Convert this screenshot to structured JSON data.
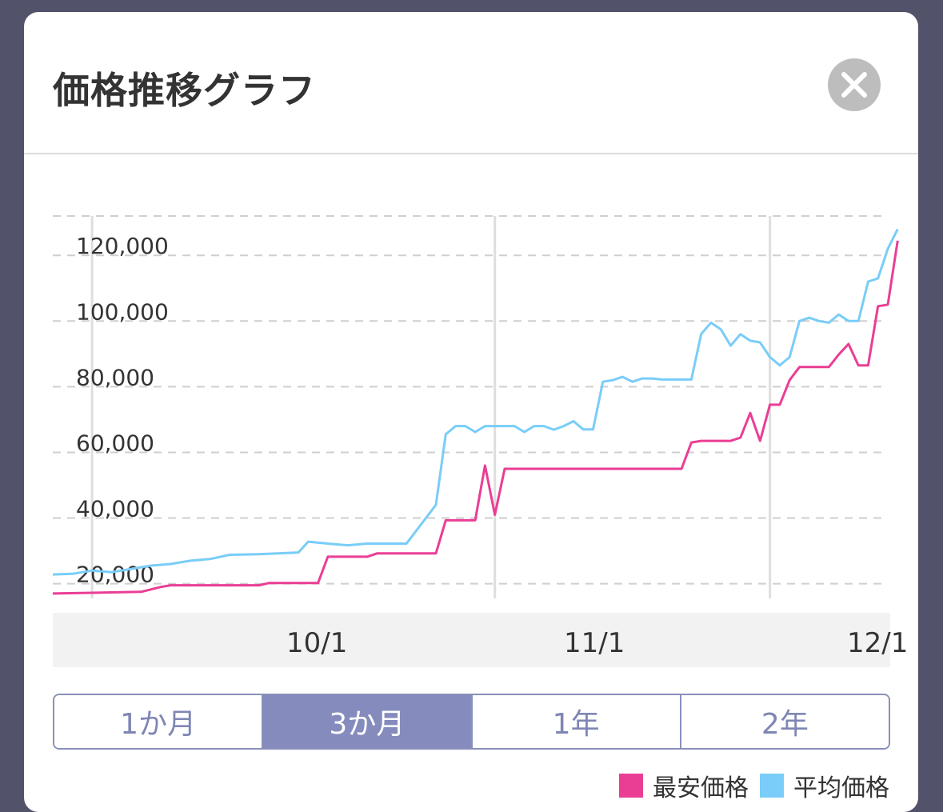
{
  "modal": {
    "title": "価格推移グラフ",
    "close_icon": "close-icon"
  },
  "tabs": [
    {
      "label": "1か月",
      "active": false
    },
    {
      "label": "3か月",
      "active": true
    },
    {
      "label": "1年",
      "active": false
    },
    {
      "label": "2年",
      "active": false
    }
  ],
  "chart_data": {
    "type": "line",
    "xlim": [
      "2023-09-09",
      "2023-12-03"
    ],
    "ylim": [
      16000,
      132000
    ],
    "yticks": [
      20000,
      40000,
      60000,
      80000,
      100000,
      120000
    ],
    "ytick_labels": [
      "20,000",
      "40,000",
      "60,000",
      "80,000",
      "100,000",
      "120,000"
    ],
    "xticks": [
      "2023-10-01",
      "2023-11-01",
      "2023-12-01"
    ],
    "xtick_labels": [
      "10/1",
      "11/1",
      "12/1"
    ],
    "grid": true,
    "legend": "bottom-right",
    "series": [
      {
        "name": "最安価格",
        "color": "#ea3e95",
        "points": [
          [
            "2023-09-09",
            17000
          ],
          [
            "2023-09-18",
            17500
          ],
          [
            "2023-09-20",
            19000
          ],
          [
            "2023-09-21",
            19500
          ],
          [
            "2023-09-27",
            19500
          ],
          [
            "2023-09-30",
            19500
          ],
          [
            "2023-10-01",
            20200
          ],
          [
            "2023-10-06",
            20200
          ],
          [
            "2023-10-07",
            28200
          ],
          [
            "2023-10-11",
            28200
          ],
          [
            "2023-10-12",
            29200
          ],
          [
            "2023-10-18",
            29200
          ],
          [
            "2023-10-19",
            39300
          ],
          [
            "2023-10-22",
            39300
          ],
          [
            "2023-10-23",
            56000
          ],
          [
            "2023-10-24",
            41000
          ],
          [
            "2023-10-25",
            55000
          ],
          [
            "2023-11-12",
            55000
          ],
          [
            "2023-11-13",
            63000
          ],
          [
            "2023-11-14",
            63500
          ],
          [
            "2023-11-17",
            63500
          ],
          [
            "2023-11-18",
            64500
          ],
          [
            "2023-11-19",
            72000
          ],
          [
            "2023-11-20",
            63500
          ],
          [
            "2023-11-21",
            74500
          ],
          [
            "2023-11-22",
            74500
          ],
          [
            "2023-11-23",
            82000
          ],
          [
            "2023-11-24",
            86000
          ],
          [
            "2023-11-27",
            86000
          ],
          [
            "2023-11-28",
            89800
          ],
          [
            "2023-11-29",
            93000
          ],
          [
            "2023-11-30",
            86500
          ],
          [
            "2023-12-01",
            86500
          ],
          [
            "2023-12-02",
            104500
          ],
          [
            "2023-12-03",
            105000
          ],
          [
            "2023-12-04",
            124500
          ]
        ]
      },
      {
        "name": "平均価格",
        "color": "#79cdf8",
        "points": [
          [
            "2023-09-09",
            22800
          ],
          [
            "2023-09-11",
            23000
          ],
          [
            "2023-09-13",
            24000
          ],
          [
            "2023-09-15",
            23500
          ],
          [
            "2023-09-17",
            24500
          ],
          [
            "2023-09-19",
            25500
          ],
          [
            "2023-09-21",
            26000
          ],
          [
            "2023-09-23",
            27000
          ],
          [
            "2023-09-25",
            27500
          ],
          [
            "2023-09-27",
            28800
          ],
          [
            "2023-09-30",
            29000
          ],
          [
            "2023-10-04",
            29500
          ],
          [
            "2023-10-05",
            32800
          ],
          [
            "2023-10-07",
            32200
          ],
          [
            "2023-10-09",
            31700
          ],
          [
            "2023-10-11",
            32200
          ],
          [
            "2023-10-15",
            32200
          ],
          [
            "2023-10-18",
            44000
          ],
          [
            "2023-10-19",
            65500
          ],
          [
            "2023-10-20",
            68000
          ],
          [
            "2023-10-21",
            68000
          ],
          [
            "2023-10-22",
            66200
          ],
          [
            "2023-10-23",
            68000
          ],
          [
            "2023-10-26",
            68000
          ],
          [
            "2023-10-27",
            66200
          ],
          [
            "2023-10-28",
            68000
          ],
          [
            "2023-10-29",
            68000
          ],
          [
            "2023-10-30",
            66900
          ],
          [
            "2023-10-31",
            68000
          ],
          [
            "2023-11-01",
            69500
          ],
          [
            "2023-11-02",
            67000
          ],
          [
            "2023-11-03",
            67000
          ],
          [
            "2023-11-04",
            81500
          ],
          [
            "2023-11-05",
            82000
          ],
          [
            "2023-11-06",
            83000
          ],
          [
            "2023-11-07",
            81500
          ],
          [
            "2023-11-08",
            82500
          ],
          [
            "2023-11-09",
            82500
          ],
          [
            "2023-11-10",
            82200
          ],
          [
            "2023-11-13",
            82200
          ],
          [
            "2023-11-14",
            96000
          ],
          [
            "2023-11-15",
            99500
          ],
          [
            "2023-11-16",
            97500
          ],
          [
            "2023-11-17",
            92500
          ],
          [
            "2023-11-18",
            96000
          ],
          [
            "2023-11-19",
            94000
          ],
          [
            "2023-11-20",
            93500
          ],
          [
            "2023-11-21",
            89000
          ],
          [
            "2023-11-22",
            86500
          ],
          [
            "2023-11-23",
            89000
          ],
          [
            "2023-11-24",
            100000
          ],
          [
            "2023-11-25",
            101000
          ],
          [
            "2023-11-26",
            100000
          ],
          [
            "2023-11-27",
            99500
          ],
          [
            "2023-11-28",
            102000
          ],
          [
            "2023-11-29",
            100000
          ],
          [
            "2023-11-30",
            100000
          ],
          [
            "2023-12-01",
            112000
          ],
          [
            "2023-12-02",
            113000
          ],
          [
            "2023-12-03",
            122000
          ],
          [
            "2023-12-04",
            128000
          ]
        ]
      }
    ]
  }
}
